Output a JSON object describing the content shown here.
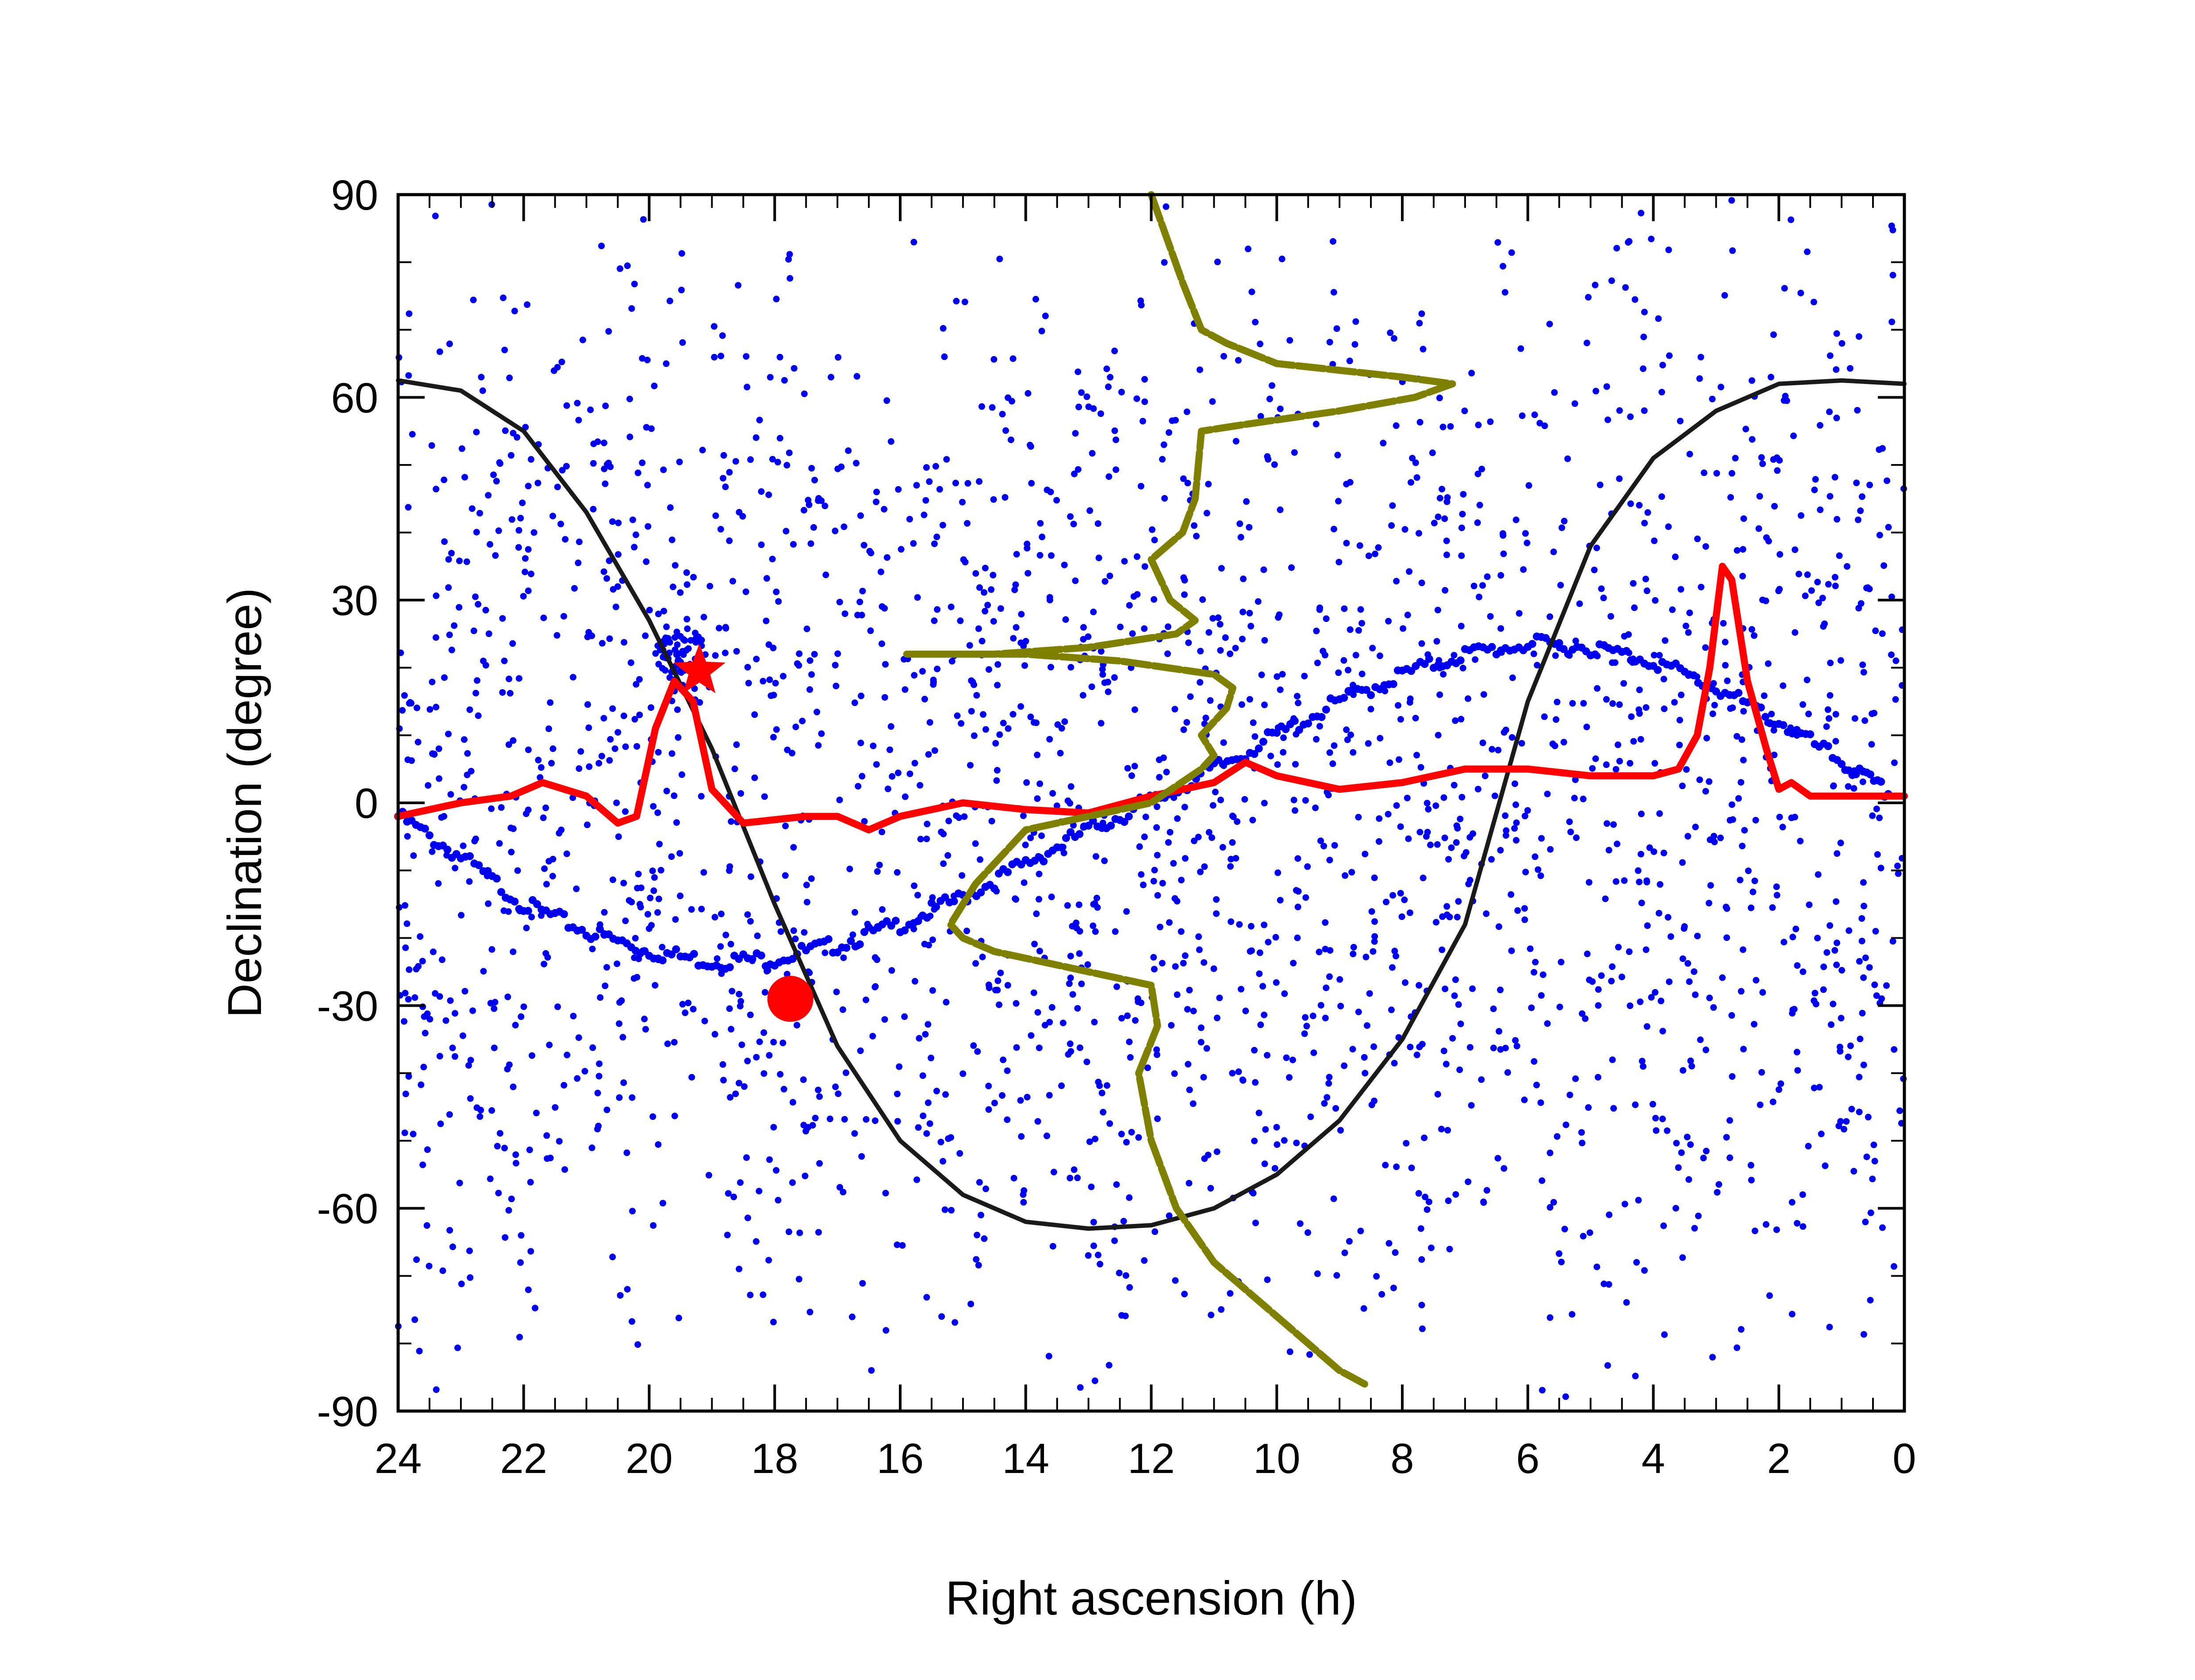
{
  "chart_data": {
    "type": "scatter",
    "title": "",
    "xlabel": "Right ascension (h)",
    "ylabel": "Declination (degree)",
    "xlim": [
      24,
      0
    ],
    "ylim": [
      -90,
      90
    ],
    "x_reversed": true,
    "xticks": [
      24,
      22,
      20,
      18,
      16,
      14,
      12,
      10,
      8,
      6,
      4,
      2,
      0
    ],
    "yticks": [
      90,
      60,
      30,
      0,
      -30,
      -60,
      -90
    ],
    "grid": false,
    "legend": "none",
    "colors": {
      "random_points": "#0000ee",
      "ecliptic": "#0000ee",
      "galactic_plane": "#1a1a1a",
      "red_curve": "#ff0000",
      "olive_curve": "#808000",
      "markers": "#ff0000"
    },
    "series": [
      {
        "kind": "scatter",
        "color": "#0000ee",
        "count": 2500,
        "distribution": "uniform on sphere (isotropic)",
        "seed": 7,
        "cluster": {
          "ra": 19.5,
          "dec": 22,
          "count": 60,
          "spread": 0.4
        }
      },
      {
        "kind": "dotted-line",
        "color": "#0000ee",
        "points": [
          [
            24.0,
            -2
          ],
          [
            23.0,
            -8
          ],
          [
            22.0,
            -15
          ],
          [
            21.0,
            -19
          ],
          [
            20.0,
            -22
          ],
          [
            19.0,
            -23.5
          ],
          [
            18.0,
            -23
          ],
          [
            17.0,
            -21
          ],
          [
            16.0,
            -18
          ],
          [
            15.0,
            -14
          ],
          [
            14.0,
            -9
          ],
          [
            13.0,
            -4
          ],
          [
            12.0,
            0
          ],
          [
            11.0,
            5
          ],
          [
            10.0,
            10
          ],
          [
            9.0,
            15
          ],
          [
            8.0,
            19
          ],
          [
            7.0,
            22
          ],
          [
            6.0,
            23.5
          ],
          [
            5.0,
            23
          ],
          [
            4.0,
            21
          ],
          [
            3.0,
            17
          ],
          [
            2.0,
            12
          ],
          [
            1.0,
            6
          ],
          [
            0.2,
            1
          ]
        ]
      },
      {
        "kind": "line",
        "color": "#1a1a1a",
        "points": [
          [
            24.0,
            62.5
          ],
          [
            23.0,
            61
          ],
          [
            22.0,
            55
          ],
          [
            21.0,
            43
          ],
          [
            20.0,
            27
          ],
          [
            19.0,
            8
          ],
          [
            18.0,
            -15
          ],
          [
            17.0,
            -36
          ],
          [
            16.0,
            -50
          ],
          [
            15.0,
            -58
          ],
          [
            14.0,
            -62
          ],
          [
            13.0,
            -63
          ],
          [
            12.0,
            -62.5
          ],
          [
            11.0,
            -60
          ],
          [
            10.0,
            -55
          ],
          [
            9.0,
            -47
          ],
          [
            8.0,
            -35
          ],
          [
            7.0,
            -18
          ],
          [
            6.0,
            15
          ],
          [
            5.0,
            38
          ],
          [
            4.0,
            51
          ],
          [
            3.0,
            58
          ],
          [
            2.0,
            62
          ],
          [
            1.0,
            62.5
          ],
          [
            0.0,
            62
          ]
        ]
      },
      {
        "kind": "line",
        "color": "#ff0000",
        "points": [
          [
            24.0,
            -2
          ],
          [
            23.0,
            0
          ],
          [
            22.2,
            1
          ],
          [
            21.7,
            3
          ],
          [
            21.0,
            1
          ],
          [
            20.5,
            -3
          ],
          [
            20.2,
            -2
          ],
          [
            19.9,
            11
          ],
          [
            19.6,
            18
          ],
          [
            19.3,
            15
          ],
          [
            19.0,
            2
          ],
          [
            18.5,
            -3
          ],
          [
            17.5,
            -2
          ],
          [
            17.0,
            -2
          ],
          [
            16.5,
            -4
          ],
          [
            16.0,
            -2
          ],
          [
            15.0,
            0
          ],
          [
            14.0,
            -1
          ],
          [
            13.0,
            -1.5
          ],
          [
            12.0,
            1
          ],
          [
            11.0,
            3
          ],
          [
            10.5,
            6
          ],
          [
            10.0,
            4
          ],
          [
            9.0,
            2
          ],
          [
            8.0,
            3
          ],
          [
            7.0,
            5
          ],
          [
            6.0,
            5
          ],
          [
            5.0,
            4
          ],
          [
            4.0,
            4
          ],
          [
            3.6,
            5
          ],
          [
            3.3,
            10
          ],
          [
            3.1,
            20
          ],
          [
            2.9,
            35
          ],
          [
            2.75,
            33
          ],
          [
            2.5,
            18
          ],
          [
            2.2,
            8
          ],
          [
            2.0,
            2
          ],
          [
            1.8,
            3
          ],
          [
            1.5,
            1
          ],
          [
            0.5,
            1
          ],
          [
            0.0,
            1
          ]
        ]
      },
      {
        "kind": "dashed-line",
        "color": "#808000",
        "points": [
          [
            12.0,
            90
          ],
          [
            11.5,
            77
          ],
          [
            11.2,
            70
          ],
          [
            10.8,
            68
          ],
          [
            10.0,
            65
          ],
          [
            8.0,
            63
          ],
          [
            7.2,
            62
          ],
          [
            7.8,
            60
          ],
          [
            9.0,
            58
          ],
          [
            10.5,
            56
          ],
          [
            11.2,
            55
          ],
          [
            11.3,
            45
          ],
          [
            11.5,
            40
          ],
          [
            12.0,
            36
          ],
          [
            11.7,
            30
          ],
          [
            11.3,
            27
          ],
          [
            11.6,
            25
          ],
          [
            13.0,
            23
          ],
          [
            14.5,
            22
          ],
          [
            15.9,
            22
          ],
          [
            14.0,
            22
          ],
          [
            12.5,
            21
          ],
          [
            11.0,
            19
          ],
          [
            10.7,
            17
          ],
          [
            10.8,
            14
          ],
          [
            11.2,
            10
          ],
          [
            11.0,
            7
          ],
          [
            11.2,
            5
          ],
          [
            12.0,
            0
          ],
          [
            14.0,
            -4
          ],
          [
            14.8,
            -12
          ],
          [
            15.2,
            -18
          ],
          [
            15.0,
            -20
          ],
          [
            14.5,
            -22
          ],
          [
            13.0,
            -25
          ],
          [
            12.0,
            -27
          ],
          [
            11.9,
            -33
          ],
          [
            12.2,
            -40
          ],
          [
            12.0,
            -50
          ],
          [
            11.6,
            -60
          ],
          [
            11.0,
            -68
          ],
          [
            10.0,
            -76
          ],
          [
            9.0,
            -84
          ],
          [
            8.6,
            -86
          ]
        ]
      },
      {
        "kind": "marker",
        "shape": "star",
        "color": "#ff0000",
        "points": [
          [
            19.2,
            19.5
          ]
        ]
      },
      {
        "kind": "marker",
        "shape": "circle",
        "color": "#ff0000",
        "points": [
          [
            17.75,
            -29
          ]
        ]
      }
    ]
  }
}
